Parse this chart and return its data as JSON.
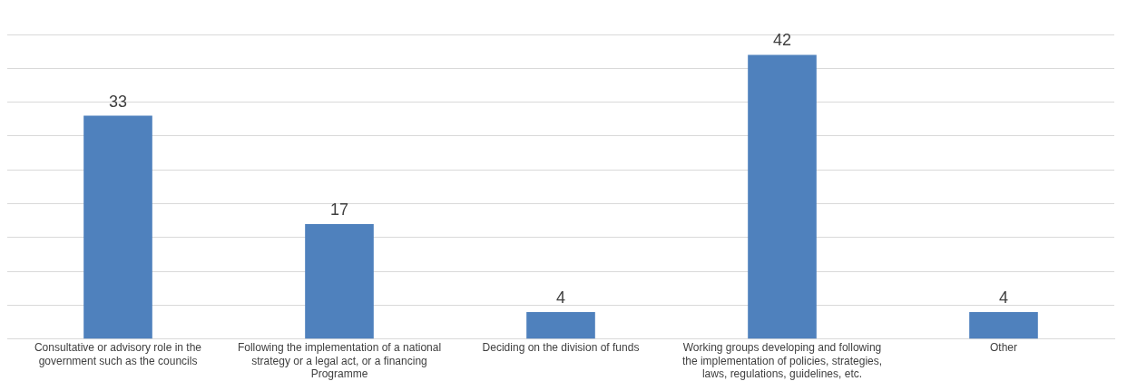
{
  "chart_data": {
    "type": "bar",
    "categories": [
      "Consultative or advisory role in the government such as the councils",
      "Following the implementation of a national strategy or a legal act, or a financing Programme",
      "Deciding on the division of funds",
      "Working groups developing and following the implementation of policies, strategies, laws, regulations, guidelines, etc.",
      "Other"
    ],
    "values": [
      33,
      17,
      4,
      42,
      4
    ],
    "color": "#4f81bd",
    "ylim": [
      0,
      45
    ],
    "yticks": [
      {
        "value": 0,
        "label": null
      },
      {
        "value": 5,
        "label": null
      },
      {
        "value": 10,
        "label": null
      },
      {
        "value": 15,
        "label": null
      },
      {
        "value": 20,
        "label": null
      },
      {
        "value": 25,
        "label": null
      },
      {
        "value": 30,
        "label": null
      },
      {
        "value": 35,
        "label": null
      },
      {
        "value": 40,
        "label": null
      },
      {
        "value": 45,
        "label": null
      }
    ],
    "grid": "y",
    "tick_labels": "x",
    "data_labels": true,
    "legend": false
  }
}
